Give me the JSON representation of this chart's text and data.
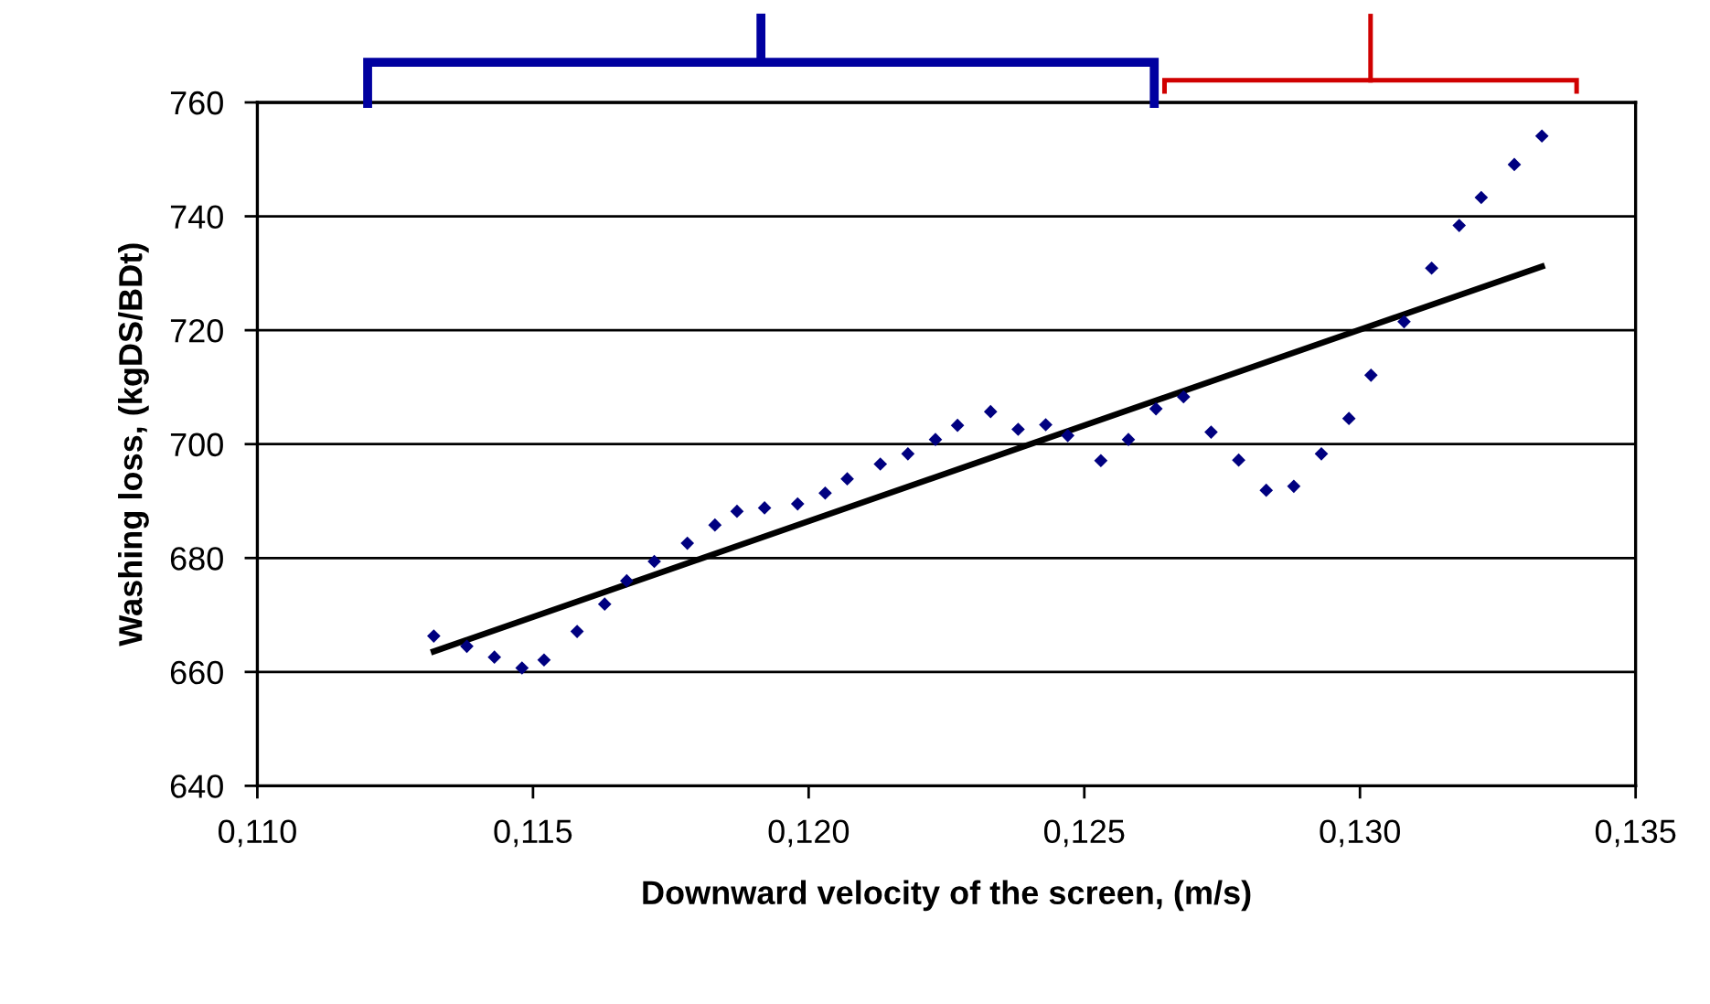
{
  "chart_data": {
    "type": "scatter",
    "xlabel": "Downward velocity of the screen, (m/s)",
    "ylabel": "Washing loss, (kgDS/BDt)",
    "xlim": [
      0.11,
      0.135
    ],
    "xticks": [
      {
        "value": 0.11,
        "label": "0,110"
      },
      {
        "value": 0.115,
        "label": "0,115"
      },
      {
        "value": 0.12,
        "label": "0,120"
      },
      {
        "value": 0.125,
        "label": "0,125"
      },
      {
        "value": 0.13,
        "label": "0,130"
      },
      {
        "value": 0.135,
        "label": "0,135"
      }
    ],
    "ylim": [
      640,
      760
    ],
    "yticks": [
      640,
      660,
      680,
      700,
      720,
      740,
      760
    ],
    "grid": "y",
    "legend": false,
    "marker": "diamond",
    "series": [
      {
        "color": "#000080",
        "x": [
          0.1132,
          0.1138,
          0.1143,
          0.1148,
          0.1152,
          0.1158,
          0.1163,
          0.1167,
          0.1172,
          0.1178,
          0.1183,
          0.1187,
          0.1192,
          0.1198,
          0.1203,
          0.1207,
          0.1213,
          0.1218,
          0.1223,
          0.1227,
          0.1233,
          0.1238,
          0.1243,
          0.1247,
          0.1253,
          0.1258,
          0.1263,
          0.1268,
          0.1273,
          0.1278,
          0.1283,
          0.1288,
          0.1293,
          0.1298,
          0.1302,
          0.1308,
          0.1313,
          0.1318,
          0.1322,
          0.1328,
          0.1333
        ],
        "values": [
          666.3,
          664.5,
          662.6,
          660.7,
          662.1,
          667.1,
          671.9,
          676.0,
          679.4,
          682.6,
          685.8,
          688.2,
          688.8,
          689.5,
          691.4,
          693.9,
          696.5,
          698.3,
          700.8,
          703.3,
          705.7,
          702.6,
          703.4,
          701.5,
          697.1,
          700.8,
          706.2,
          708.3,
          702.1,
          697.2,
          691.9,
          692.6,
          698.3,
          704.5,
          712.1,
          721.5,
          730.9,
          738.4,
          743.3,
          749.1,
          754.1
        ]
      },
      {
        "type": "line",
        "color": "#000000",
        "marker": "none",
        "line_style": "solid",
        "x": [
          0.1132,
          0.1333
        ],
        "values": [
          663.6,
          731.2
        ]
      }
    ]
  }
}
